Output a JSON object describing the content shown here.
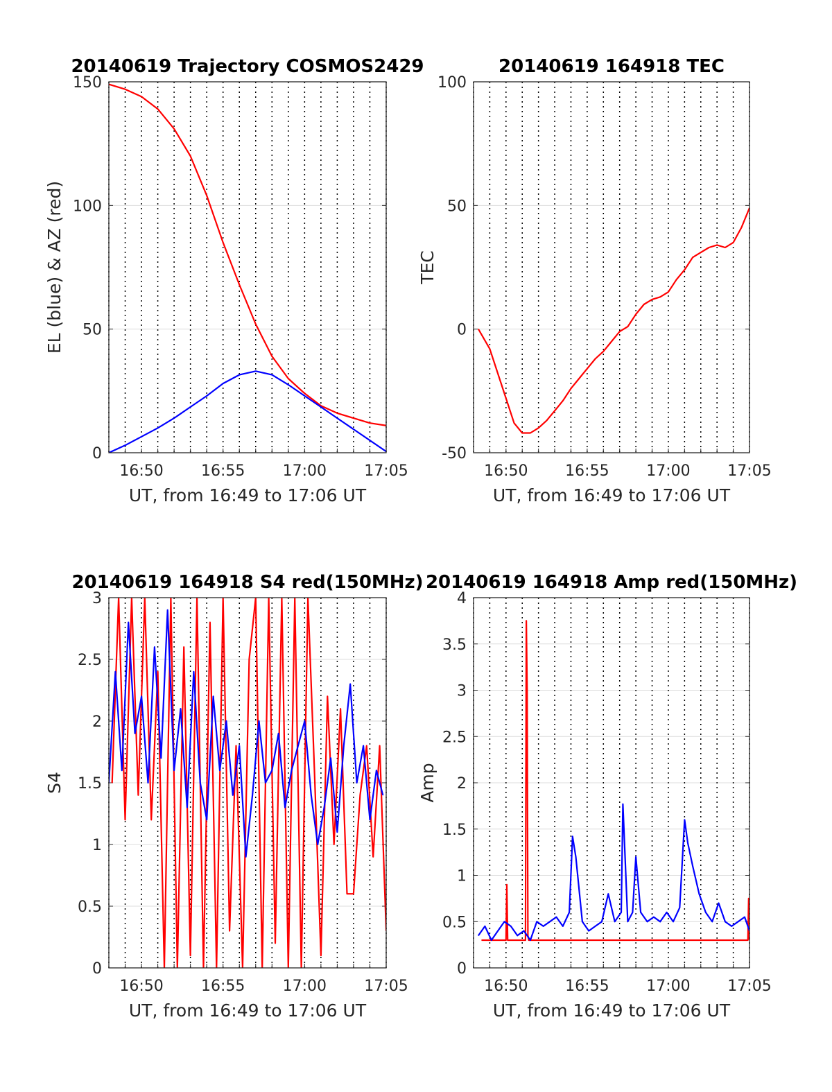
{
  "chart_data": [
    {
      "type": "line",
      "title": "20140619 Trajectory COSMOS2429",
      "xlabel": "UT, from 16:49 to 17:06 UT",
      "ylabel": "EL (blue) & AZ (red)",
      "x_ticks": [
        "16:50",
        "16:55",
        "17:00",
        "17:05"
      ],
      "y_ticks": [
        "0",
        "50",
        "100",
        "150"
      ],
      "xlim_minutes": [
        -1,
        16
      ],
      "ylim": [
        0,
        150
      ],
      "grid": "on",
      "series": [
        {
          "color": "#ff0000",
          "x": [
            -1,
            0,
            1,
            2,
            3,
            4,
            5,
            6,
            7,
            8,
            9,
            10,
            11,
            12,
            13,
            14,
            15,
            16
          ],
          "values": [
            149,
            147,
            144,
            139,
            131,
            120,
            104,
            85,
            68,
            52,
            39,
            30,
            24,
            19,
            16,
            14,
            12,
            11
          ]
        },
        {
          "color": "#0000ff",
          "x": [
            -1,
            0,
            1,
            2,
            3,
            4,
            5,
            6,
            7,
            8,
            9,
            10,
            11,
            12,
            13,
            14,
            15,
            16
          ],
          "values": [
            0,
            3,
            6.5,
            10,
            14,
            18.5,
            23,
            28,
            31.5,
            33,
            31.5,
            27.5,
            23,
            18.5,
            14,
            9.5,
            5,
            0.5
          ]
        }
      ]
    },
    {
      "type": "line",
      "title": "20140619 164918 TEC",
      "xlabel": "UT, from 16:49 to 17:06 UT",
      "ylabel": "TEC",
      "x_ticks": [
        "16:50",
        "16:55",
        "17:00",
        "17:05"
      ],
      "y_ticks": [
        "-50",
        "0",
        "50",
        "100"
      ],
      "xlim_minutes": [
        -1,
        16
      ],
      "ylim": [
        -50,
        100
      ],
      "grid": "on",
      "series": [
        {
          "color": "#ff0000",
          "x": [
            -0.7,
            0,
            0.5,
            1,
            1.5,
            2,
            2.5,
            3,
            3.5,
            4,
            4.5,
            5,
            5.5,
            6,
            6.5,
            7,
            7.5,
            8,
            8.5,
            9,
            9.5,
            10,
            10.5,
            11,
            11.5,
            12,
            12.5,
            13,
            13.5,
            14,
            14.5,
            15,
            15.5,
            16
          ],
          "values": [
            0,
            -8,
            -18,
            -28,
            -38,
            -42,
            -42,
            -40,
            -37,
            -33,
            -29,
            -24,
            -20,
            -16,
            -12,
            -9,
            -5,
            -1,
            1,
            6,
            10,
            12,
            13,
            15,
            20,
            24,
            29,
            31,
            33,
            34,
            33,
            35,
            41,
            49
          ]
        }
      ]
    },
    {
      "type": "line",
      "title": "20140619 164918 S4 red(150MHz)",
      "xlabel": "UT, from 16:49 to 17:06 UT",
      "ylabel": "S4",
      "x_ticks": [
        "16:50",
        "16:55",
        "17:00",
        "17:05"
      ],
      "y_ticks": [
        "0",
        "0.5",
        "1",
        "1.5",
        "2",
        "2.5",
        "3"
      ],
      "xlim_minutes": [
        -1,
        16
      ],
      "ylim": [
        0,
        3
      ],
      "grid": "on",
      "series": [
        {
          "color": "#ff0000",
          "x": [
            -0.8,
            -0.4,
            0,
            0.4,
            0.8,
            1.2,
            1.6,
            2,
            2.4,
            2.8,
            3.2,
            3.6,
            4,
            4.4,
            4.8,
            5.2,
            5.6,
            6,
            6.4,
            6.8,
            7.2,
            7.6,
            8,
            8.4,
            8.8,
            9.2,
            9.6,
            10,
            10.4,
            10.8,
            11.2,
            11.6,
            12,
            12.4,
            12.8,
            13.2,
            13.6,
            14,
            14.4,
            14.8,
            15.2,
            15.6,
            16
          ],
          "values": [
            1.5,
            3,
            1.2,
            3,
            1.4,
            3,
            1.2,
            2.4,
            0,
            3,
            0,
            2.6,
            0.1,
            3,
            0,
            2.8,
            0,
            3,
            0.3,
            1.8,
            0,
            2.5,
            3,
            0,
            3,
            0.2,
            3,
            0,
            3,
            0,
            3,
            1.6,
            0.1,
            2.2,
            1,
            2.1,
            0.6,
            0.6,
            1.4,
            1.8,
            0.9,
            1.8,
            0.3
          ]
        },
        {
          "color": "#0000ff",
          "x": [
            -1,
            -0.6,
            -0.2,
            0.2,
            0.6,
            1,
            1.4,
            1.8,
            2.2,
            2.6,
            3,
            3.4,
            3.8,
            4.2,
            4.6,
            5,
            5.4,
            5.8,
            6.2,
            6.6,
            7,
            7.4,
            7.8,
            8.2,
            8.6,
            9,
            9.4,
            9.8,
            10.2,
            10.6,
            11,
            11.4,
            11.8,
            12.2,
            12.6,
            13,
            13.4,
            13.8,
            14.2,
            14.6,
            15,
            15.4,
            15.8
          ],
          "values": [
            1.5,
            2.4,
            1.6,
            2.8,
            1.9,
            2.2,
            1.5,
            2.6,
            1.7,
            2.9,
            1.6,
            2.1,
            1.3,
            2.4,
            1.5,
            1.2,
            2.2,
            1.6,
            2.0,
            1.4,
            1.8,
            0.9,
            1.4,
            2.0,
            1.5,
            1.6,
            1.9,
            1.3,
            1.6,
            1.8,
            2.0,
            1.4,
            1.0,
            1.3,
            1.7,
            1.1,
            1.8,
            2.3,
            1.5,
            1.8,
            1.2,
            1.6,
            1.4
          ]
        }
      ]
    },
    {
      "type": "line",
      "title": "20140619 164918 Amp red(150MHz)",
      "xlabel": "UT, from 16:49 to 17:06 UT",
      "ylabel": "Amp",
      "x_ticks": [
        "16:50",
        "16:55",
        "17:00",
        "17:05"
      ],
      "y_ticks": [
        "0",
        "0.5",
        "1",
        "1.5",
        "2",
        "2.5",
        "3",
        "3.5",
        "4"
      ],
      "xlim_minutes": [
        -1,
        16
      ],
      "ylim": [
        0,
        4
      ],
      "grid": "on",
      "series": [
        {
          "color": "#ff0000",
          "x": [
            -0.5,
            1,
            1.05,
            1.1,
            2.2,
            2.25,
            2.3,
            2.35,
            2.4,
            15.9,
            15.95,
            16
          ],
          "values": [
            0.3,
            0.3,
            0.9,
            0.3,
            0.3,
            3.75,
            3.0,
            0.35,
            0.3,
            0.3,
            0.75,
            0.3
          ]
        },
        {
          "color": "#0000ff",
          "x": [
            -0.7,
            -0.3,
            0.1,
            0.5,
            0.9,
            1.3,
            1.7,
            2.1,
            2.5,
            2.9,
            3.3,
            3.7,
            4.1,
            4.5,
            4.9,
            5.1,
            5.3,
            5.7,
            6.1,
            6.5,
            6.9,
            7.3,
            7.7,
            8.1,
            8.2,
            8.5,
            8.8,
            9.0,
            9.3,
            9.7,
            10.1,
            10.5,
            10.9,
            11.3,
            11.7,
            12.0,
            12.2,
            12.5,
            12.9,
            13.3,
            13.7,
            14.1,
            14.5,
            14.9,
            15.3,
            15.7,
            16
          ],
          "values": [
            0.35,
            0.45,
            0.3,
            0.4,
            0.5,
            0.45,
            0.35,
            0.4,
            0.3,
            0.5,
            0.45,
            0.5,
            0.55,
            0.45,
            0.6,
            1.42,
            1.2,
            0.5,
            0.4,
            0.45,
            0.5,
            0.8,
            0.5,
            0.6,
            1.77,
            0.5,
            0.6,
            1.2,
            0.6,
            0.5,
            0.55,
            0.5,
            0.6,
            0.5,
            0.65,
            1.6,
            1.35,
            1.1,
            0.8,
            0.6,
            0.5,
            0.7,
            0.5,
            0.45,
            0.5,
            0.55,
            0.4
          ]
        }
      ]
    }
  ]
}
